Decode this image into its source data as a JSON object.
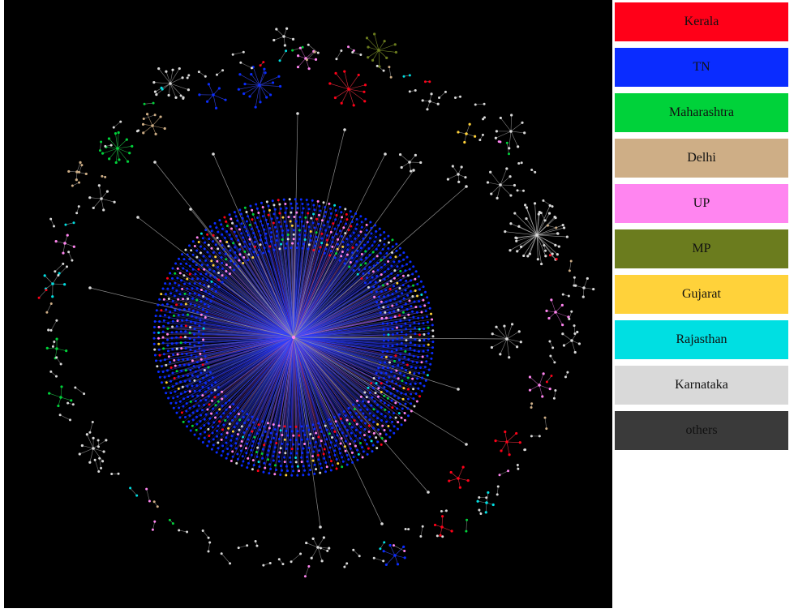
{
  "legend": {
    "items": [
      {
        "label": "Kerala",
        "color": "#ff0018"
      },
      {
        "label": "TN",
        "color": "#0a2cff"
      },
      {
        "label": "Maharashtra",
        "color": "#00d23a"
      },
      {
        "label": "Delhi",
        "color": "#ceae86"
      },
      {
        "label": "UP",
        "color": "#ff85f0"
      },
      {
        "label": "MP",
        "color": "#6b7c1e"
      },
      {
        "label": "Gujarat",
        "color": "#ffd23a"
      },
      {
        "label": "Rajasthan",
        "color": "#00dfe2"
      },
      {
        "label": "Karnataka",
        "color": "#d9d9d9"
      },
      {
        "label": "others",
        "color": "#3a3a3a"
      }
    ]
  },
  "graph": {
    "background": "#000000",
    "edge_color": "#9a9a9a"
  }
}
